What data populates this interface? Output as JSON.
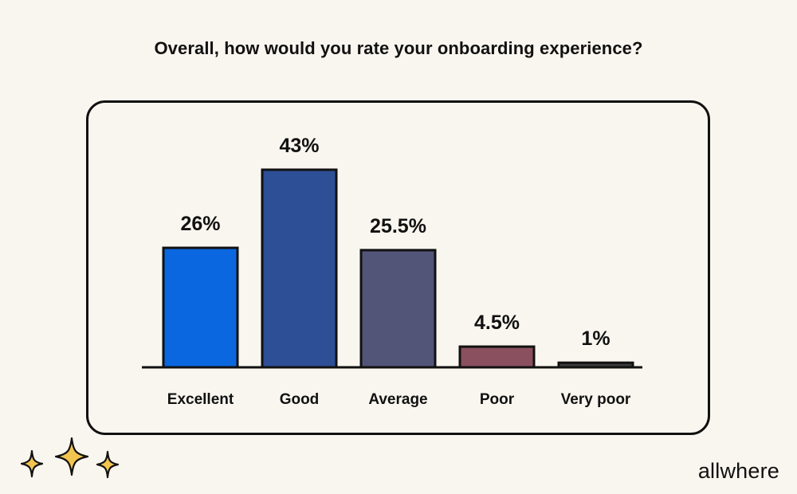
{
  "chart_data": {
    "type": "bar",
    "title": "Overall, how would you rate your onboarding experience?",
    "categories": [
      "Excellent",
      "Good",
      "Average",
      "Poor",
      "Very poor"
    ],
    "values": [
      26,
      43,
      25.5,
      4.5,
      1
    ],
    "value_labels": [
      "26%",
      "43%",
      "25.5%",
      "4.5%",
      "1%"
    ],
    "colors": [
      "#0b67e0",
      "#2d4f96",
      "#525478",
      "#8a5060",
      "#3a3a3a"
    ],
    "xlabel": "",
    "ylabel": "",
    "ylim": [
      0,
      43
    ],
    "grid": false
  },
  "brand": {
    "name": "allwhere"
  },
  "decoration": {
    "icon": "sparkles-icon",
    "color": "#f3c550"
  }
}
